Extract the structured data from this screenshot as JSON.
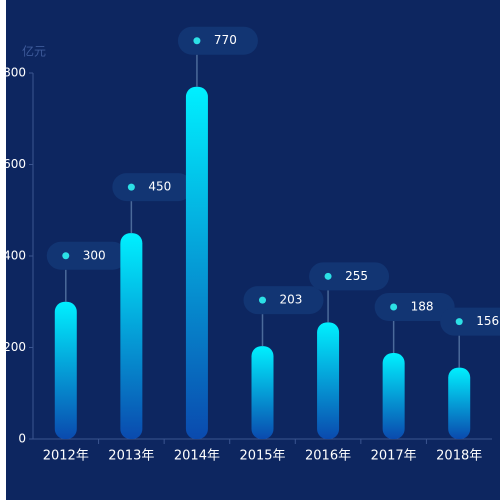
{
  "chart_data": {
    "type": "bar",
    "y_unit": "亿元",
    "categories": [
      "2012年",
      "2013年",
      "2014年",
      "2015年",
      "2016年",
      "2017年",
      "2018年"
    ],
    "values": [
      300,
      450,
      770,
      203,
      255,
      188,
      156
    ],
    "color": "#00e4ff",
    "ylim": [
      0,
      800
    ],
    "yticks": [
      0,
      200,
      400,
      600,
      800
    ]
  }
}
